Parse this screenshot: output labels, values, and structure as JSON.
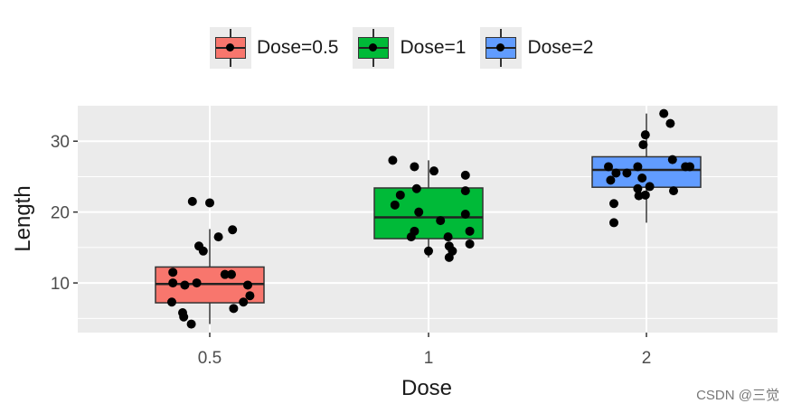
{
  "chart_data": {
    "type": "boxplot",
    "title": "",
    "xlabel": "Dose",
    "ylabel": "Length",
    "categories": [
      "0.5",
      "1",
      "2"
    ],
    "ylim": [
      3,
      35
    ],
    "yticks": [
      10,
      20,
      30
    ],
    "grid": true,
    "legend": {
      "position": "top",
      "entries": [
        {
          "label": "Dose=0.5",
          "color": "#F8766D"
        },
        {
          "label": "Dose=1",
          "color": "#00BA38"
        },
        {
          "label": "Dose=2",
          "color": "#619CFF"
        }
      ]
    },
    "series": [
      {
        "name": "Dose=0.5",
        "category": "0.5",
        "color": "#F8766D",
        "box": {
          "min": 4.2,
          "q1": 7.2,
          "median": 9.85,
          "q3": 12.25,
          "max": 17.6
        },
        "points": [
          {
            "jitter": -0.16,
            "y": 21.5
          },
          {
            "jitter": 0.0,
            "y": 21.3
          },
          {
            "jitter": 0.21,
            "y": 17.5
          },
          {
            "jitter": 0.08,
            "y": 16.5
          },
          {
            "jitter": -0.1,
            "y": 15.2
          },
          {
            "jitter": -0.06,
            "y": 14.5
          },
          {
            "jitter": -0.34,
            "y": 11.5
          },
          {
            "jitter": 0.14,
            "y": 11.2
          },
          {
            "jitter": 0.2,
            "y": 11.2
          },
          {
            "jitter": -0.34,
            "y": 10.0
          },
          {
            "jitter": -0.23,
            "y": 9.7
          },
          {
            "jitter": -0.12,
            "y": 10.0
          },
          {
            "jitter": 0.35,
            "y": 9.7
          },
          {
            "jitter": 0.37,
            "y": 8.2
          },
          {
            "jitter": 0.31,
            "y": 7.3
          },
          {
            "jitter": -0.35,
            "y": 7.3
          },
          {
            "jitter": 0.22,
            "y": 6.4
          },
          {
            "jitter": -0.25,
            "y": 5.8
          },
          {
            "jitter": -0.24,
            "y": 5.2
          },
          {
            "jitter": -0.17,
            "y": 4.2
          }
        ]
      },
      {
        "name": "Dose=1",
        "category": "1",
        "color": "#00BA38",
        "box": {
          "min": 13.6,
          "q1": 16.25,
          "median": 19.25,
          "q3": 23.4,
          "max": 27.3
        },
        "points": [
          {
            "jitter": -0.33,
            "y": 27.3
          },
          {
            "jitter": -0.13,
            "y": 26.4
          },
          {
            "jitter": 0.05,
            "y": 25.8
          },
          {
            "jitter": 0.34,
            "y": 25.2
          },
          {
            "jitter": -0.11,
            "y": 23.3
          },
          {
            "jitter": 0.34,
            "y": 23.0
          },
          {
            "jitter": -0.26,
            "y": 22.4
          },
          {
            "jitter": -0.31,
            "y": 21.0
          },
          {
            "jitter": -0.09,
            "y": 20.0
          },
          {
            "jitter": 0.34,
            "y": 19.7
          },
          {
            "jitter": 0.11,
            "y": 18.8
          },
          {
            "jitter": -0.13,
            "y": 17.3
          },
          {
            "jitter": 0.38,
            "y": 17.3
          },
          {
            "jitter": -0.16,
            "y": 16.5
          },
          {
            "jitter": 0.18,
            "y": 16.5
          },
          {
            "jitter": 0.38,
            "y": 15.5
          },
          {
            "jitter": 0.19,
            "y": 15.2
          },
          {
            "jitter": 0.22,
            "y": 14.5
          },
          {
            "jitter": 0.0,
            "y": 14.5
          },
          {
            "jitter": 0.19,
            "y": 13.6
          }
        ]
      },
      {
        "name": "Dose=2",
        "category": "2",
        "color": "#619CFF",
        "box": {
          "min": 18.5,
          "q1": 23.5,
          "median": 25.95,
          "q3": 27.8,
          "max": 33.9
        },
        "points": [
          {
            "jitter": 0.16,
            "y": 33.9
          },
          {
            "jitter": 0.22,
            "y": 32.5
          },
          {
            "jitter": -0.01,
            "y": 30.9
          },
          {
            "jitter": -0.03,
            "y": 29.5
          },
          {
            "jitter": -0.35,
            "y": 26.4
          },
          {
            "jitter": 0.24,
            "y": 27.4
          },
          {
            "jitter": 0.36,
            "y": 26.4
          },
          {
            "jitter": 0.4,
            "y": 26.4
          },
          {
            "jitter": -0.08,
            "y": 26.4
          },
          {
            "jitter": -0.28,
            "y": 25.5
          },
          {
            "jitter": -0.18,
            "y": 25.5
          },
          {
            "jitter": -0.04,
            "y": 24.8
          },
          {
            "jitter": -0.33,
            "y": 24.5
          },
          {
            "jitter": 0.03,
            "y": 23.6
          },
          {
            "jitter": -0.08,
            "y": 23.3
          },
          {
            "jitter": 0.25,
            "y": 23.0
          },
          {
            "jitter": -0.01,
            "y": 22.4
          },
          {
            "jitter": -0.07,
            "y": 22.3
          },
          {
            "jitter": -0.3,
            "y": 21.2
          },
          {
            "jitter": -0.3,
            "y": 18.5
          }
        ]
      }
    ]
  },
  "watermark": "CSDN @三觉"
}
